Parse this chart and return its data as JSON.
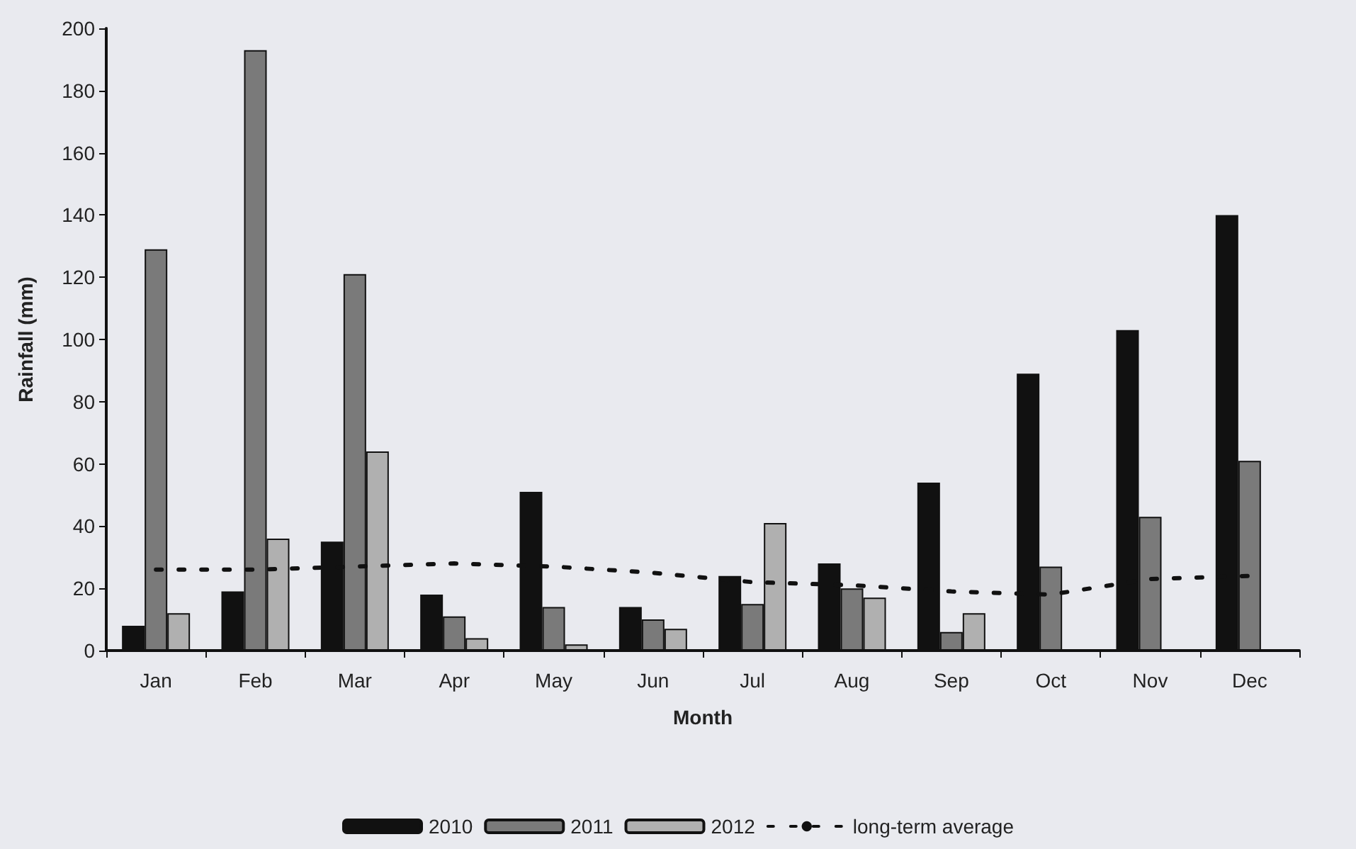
{
  "chart_data": {
    "type": "bar",
    "xlabel": "Month",
    "ylabel": "Rainfall (mm)",
    "categories": [
      "Jan",
      "Feb",
      "Mar",
      "Apr",
      "May",
      "Jun",
      "Jul",
      "Aug",
      "Sep",
      "Oct",
      "Nov",
      "Dec"
    ],
    "series": [
      {
        "name": "2010",
        "color": "#111111",
        "values": [
          8,
          19,
          35,
          18,
          51,
          14,
          24,
          28,
          54,
          89,
          103,
          140
        ]
      },
      {
        "name": "2011",
        "color": "#7a7a7a",
        "values": [
          129,
          193,
          121,
          11,
          14,
          10,
          15,
          20,
          6,
          27,
          43,
          61
        ]
      },
      {
        "name": "2012",
        "color": "#b0b0b0",
        "values": [
          12,
          36,
          64,
          4,
          2,
          7,
          41,
          17,
          12,
          null,
          null,
          null
        ]
      },
      {
        "name": "long-term average",
        "type": "line",
        "color": "#111111",
        "line_style": "dotted",
        "marker": "none",
        "values": [
          26,
          26,
          27,
          28,
          27,
          25,
          22,
          21,
          19,
          18,
          23,
          24
        ]
      }
    ],
    "ylim": [
      0,
      200
    ],
    "yticks": [
      0,
      20,
      40,
      60,
      80,
      100,
      120,
      140,
      160,
      180,
      200
    ],
    "grid": false,
    "legend": "bottom"
  }
}
